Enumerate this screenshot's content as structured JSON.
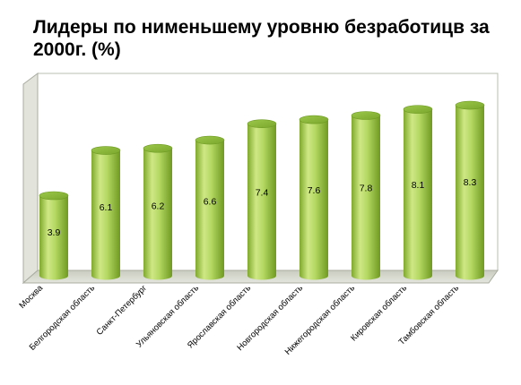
{
  "chart_data": {
    "type": "bar",
    "style": "3d-cylinder",
    "title": "Лидеры по нименьшему уровню безработицв за 2000г. (%)",
    "categories": [
      "Москва",
      "Белгородская область",
      "Санкт-Петербург",
      "Ульяновская область",
      "Ярославская область",
      "Новгородская область",
      "Нижегородская область",
      "Кировская область",
      "Тамбовская область"
    ],
    "values": [
      3.9,
      6.1,
      6.2,
      6.6,
      7.4,
      7.6,
      7.8,
      8.1,
      8.3
    ],
    "xlabel": "",
    "ylabel": "",
    "ylim": [
      0,
      9.5
    ],
    "grid": false,
    "legend": "none",
    "colors": {
      "bar_light": "#d9ef8e",
      "bar_mid": "#a4cf4f",
      "bar_dark": "#6f9a22",
      "wall": "#ffffff",
      "floor": "#d8dbd0"
    }
  }
}
